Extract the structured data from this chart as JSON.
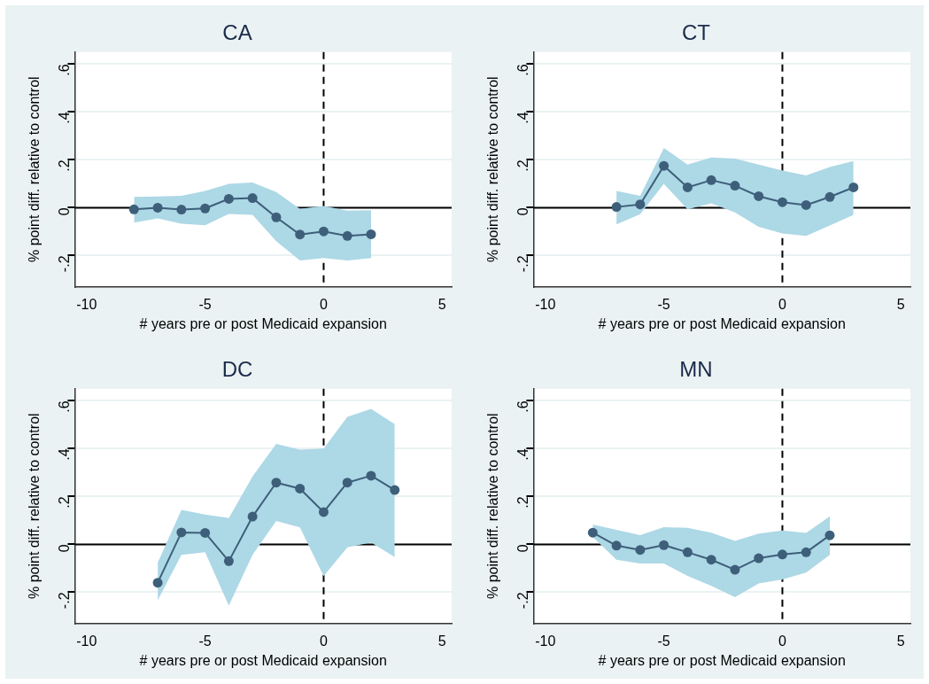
{
  "chart_data": [
    {
      "type": "line",
      "title": "CA",
      "xlabel": "# years pre or post Medicaid expansion",
      "ylabel": "% point diff. relative to control",
      "marker": "circle",
      "line_style": "solid",
      "grid": "y",
      "legend": false,
      "x": [
        -8,
        -7,
        -6,
        -5,
        -4,
        -3,
        -2,
        -1,
        0,
        1,
        2
      ],
      "series": [
        {
          "color": "#3e5f7a",
          "values": [
            -0.007,
            0,
            -0.008,
            -0.003,
            0.037,
            0.04,
            -0.04,
            -0.112,
            -0.099,
            -0.118,
            -0.111
          ],
          "upper": [
            0.045,
            0.047,
            0.05,
            0.07,
            0.1,
            0.105,
            0.065,
            -0.005,
            0.007,
            -0.012,
            -0.01
          ],
          "lower": [
            -0.062,
            -0.045,
            -0.067,
            -0.073,
            -0.026,
            -0.03,
            -0.14,
            -0.22,
            -0.21,
            -0.22,
            -0.21
          ]
        }
      ],
      "xlim": [
        -10.5,
        5.4
      ],
      "xticks": [
        -10,
        -5,
        0,
        5
      ],
      "ylim": [
        -0.33,
        0.65
      ],
      "yticks": [
        {
          "value": -0.2,
          "label": "-.2"
        },
        {
          "value": 0,
          "label": "0"
        },
        {
          "value": 0.2,
          "label": ".2"
        },
        {
          "value": 0.4,
          "label": ".4"
        },
        {
          "value": 0.6,
          "label": ".6"
        }
      ],
      "ref_lines": [
        {
          "axis": "y",
          "value": 0,
          "color": "#000000",
          "line_style": "solid"
        },
        {
          "axis": "x",
          "value": 0,
          "color": "#000000",
          "line_style": "dashed"
        }
      ]
    },
    {
      "type": "line",
      "title": "CT",
      "xlabel": "# years pre or post Medicaid expansion",
      "ylabel": "% point diff. relative to control",
      "marker": "circle",
      "line_style": "solid",
      "grid": "y",
      "legend": false,
      "x": [
        -7,
        -6,
        -5,
        -4,
        -3,
        -2,
        -1,
        0,
        1,
        2,
        3
      ],
      "series": [
        {
          "color": "#3e5f7a",
          "values": [
            0.003,
            0.014,
            0.175,
            0.085,
            0.115,
            0.092,
            0.048,
            0.023,
            0.011,
            0.045,
            0.085
          ],
          "upper": [
            0.07,
            0.05,
            0.25,
            0.18,
            0.21,
            0.205,
            0.18,
            0.155,
            0.135,
            0.17,
            0.195
          ],
          "lower": [
            -0.07,
            -0.027,
            0.1,
            -0.007,
            0.018,
            -0.02,
            -0.08,
            -0.108,
            -0.118,
            -0.074,
            -0.03
          ]
        }
      ],
      "xlim": [
        -10.5,
        5.4
      ],
      "xticks": [
        -10,
        -5,
        0,
        5
      ],
      "ylim": [
        -0.33,
        0.65
      ],
      "yticks": [
        {
          "value": -0.2,
          "label": "-.2"
        },
        {
          "value": 0,
          "label": "0"
        },
        {
          "value": 0.2,
          "label": ".2"
        },
        {
          "value": 0.4,
          "label": ".4"
        },
        {
          "value": 0.6,
          "label": ".6"
        }
      ],
      "ref_lines": [
        {
          "axis": "y",
          "value": 0,
          "color": "#000000",
          "line_style": "solid"
        },
        {
          "axis": "x",
          "value": 0,
          "color": "#000000",
          "line_style": "dashed"
        }
      ]
    },
    {
      "type": "line",
      "title": "DC",
      "xlabel": "# years pre or post Medicaid expansion",
      "ylabel": "% point diff. relative to control",
      "marker": "circle",
      "line_style": "solid",
      "grid": "y",
      "legend": false,
      "x": [
        -7,
        -6,
        -5,
        -4,
        -3,
        -2,
        -1,
        0,
        1,
        2,
        3
      ],
      "series": [
        {
          "color": "#3e5f7a",
          "values": [
            -0.16,
            0.05,
            0.048,
            -0.07,
            0.116,
            0.258,
            0.233,
            0.135,
            0.258,
            0.287,
            0.227
          ],
          "upper": [
            -0.076,
            0.144,
            0.125,
            0.11,
            0.284,
            0.42,
            0.396,
            0.4,
            0.533,
            0.566,
            0.502
          ],
          "lower": [
            -0.233,
            -0.044,
            -0.033,
            -0.256,
            -0.044,
            0.098,
            0.071,
            -0.133,
            -0.012,
            0.008,
            -0.053
          ]
        }
      ],
      "xlim": [
        -10.5,
        5.4
      ],
      "xticks": [
        -10,
        -5,
        0,
        5
      ],
      "ylim": [
        -0.33,
        0.65
      ],
      "yticks": [
        {
          "value": -0.2,
          "label": "-.2"
        },
        {
          "value": 0,
          "label": "0"
        },
        {
          "value": 0.2,
          "label": ".2"
        },
        {
          "value": 0.4,
          "label": ".4"
        },
        {
          "value": 0.6,
          "label": ".6"
        }
      ],
      "ref_lines": [
        {
          "axis": "y",
          "value": 0,
          "color": "#000000",
          "line_style": "solid"
        },
        {
          "axis": "x",
          "value": 0,
          "color": "#000000",
          "line_style": "dashed"
        }
      ]
    },
    {
      "type": "line",
      "title": "MN",
      "xlabel": "# years pre or post Medicaid expansion",
      "ylabel": "% point diff. relative to control",
      "marker": "circle",
      "line_style": "solid",
      "grid": "y",
      "legend": false,
      "x": [
        -8,
        -7,
        -6,
        -5,
        -4,
        -3,
        -2,
        -1,
        0,
        1,
        2
      ],
      "series": [
        {
          "color": "#3e5f7a",
          "values": [
            0.049,
            -0.005,
            -0.023,
            -0.003,
            -0.033,
            -0.064,
            -0.106,
            -0.058,
            -0.042,
            -0.033,
            0.038
          ],
          "upper": [
            0.083,
            0.061,
            0.039,
            0.072,
            0.069,
            0.049,
            0.015,
            0.045,
            0.058,
            0.048,
            0.117
          ],
          "lower": [
            0.031,
            -0.064,
            -0.08,
            -0.08,
            -0.132,
            -0.173,
            -0.22,
            -0.163,
            -0.146,
            -0.118,
            -0.044
          ]
        }
      ],
      "xlim": [
        -10.5,
        5.4
      ],
      "xticks": [
        -10,
        -5,
        0,
        5
      ],
      "ylim": [
        -0.33,
        0.65
      ],
      "yticks": [
        {
          "value": -0.2,
          "label": "-.2"
        },
        {
          "value": 0,
          "label": "0"
        },
        {
          "value": 0.2,
          "label": ".2"
        },
        {
          "value": 0.4,
          "label": ".4"
        },
        {
          "value": 0.6,
          "label": ".6"
        }
      ],
      "ref_lines": [
        {
          "axis": "y",
          "value": 0,
          "color": "#000000",
          "line_style": "solid"
        },
        {
          "axis": "x",
          "value": 0,
          "color": "#000000",
          "line_style": "dashed"
        }
      ]
    }
  ]
}
